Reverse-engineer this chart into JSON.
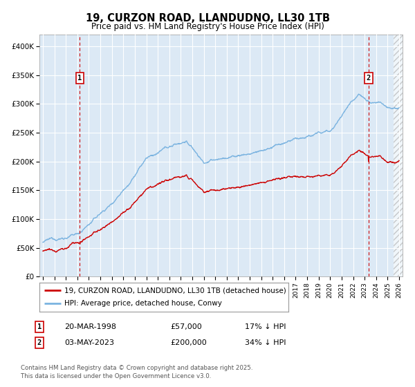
{
  "title": "19, CURZON ROAD, LLANDUDNO, LL30 1TB",
  "subtitle": "Price paid vs. HM Land Registry's House Price Index (HPI)",
  "ylim": [
    0,
    420000
  ],
  "xlim_start": 1994.7,
  "xlim_end": 2026.3,
  "bg_color": "#dce9f5",
  "hpi_color": "#7ab3e0",
  "price_color": "#cc0000",
  "sale1_x": 1998.22,
  "sale1_price": 57000,
  "sale1_date": "20-MAR-1998",
  "sale1_label": "17% ↓ HPI",
  "sale2_x": 2023.34,
  "sale2_price": 200000,
  "sale2_date": "03-MAY-2023",
  "sale2_label": "34% ↓ HPI",
  "legend_label1": "19, CURZON ROAD, LLANDUDNO, LL30 1TB (detached house)",
  "legend_label2": "HPI: Average price, detached house, Conwy",
  "footnote": "Contains HM Land Registry data © Crown copyright and database right 2025.\nThis data is licensed under the Open Government Licence v3.0.",
  "hatch_start": 2025.5
}
